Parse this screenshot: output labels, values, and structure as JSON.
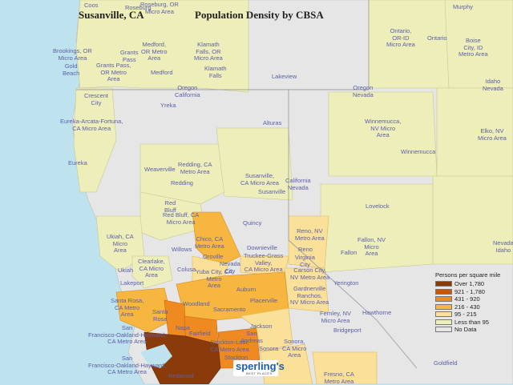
{
  "header": {
    "location": "Susanville, CA",
    "title": "Population Density by CBSA"
  },
  "legend": {
    "title": "Persons per square mile",
    "items": [
      {
        "label": "Over 1,780",
        "color": "#8b3a0a"
      },
      {
        "label": "921 - 1,780",
        "color": "#c6580e"
      },
      {
        "label": "431 - 920",
        "color": "#ee8a1f"
      },
      {
        "label": "216 - 430",
        "color": "#f7b640"
      },
      {
        "label": "95 - 215",
        "color": "#fbe09a"
      },
      {
        "label": "Less than 95",
        "color": "#eeeebb"
      },
      {
        "label": "No Data",
        "color": "#e6e6e6"
      }
    ]
  },
  "map_labels": {
    "coos": "Coos",
    "roseburg_top": "Roseburg",
    "roseburg": "Roseburg, OR\nMicro Area",
    "murphy": "Murphy",
    "brookings": "Brookings, OR\nMicro Area",
    "grants_pass_city": "Grants\nPass",
    "grants_pass": "Grants Pass,\nOR Metro\nArea",
    "medford": "Medford,\nOR Metro\nArea",
    "medford_city": "Medford",
    "klamath": "Klamath\nFalls, OR\nMicro Area",
    "klamath_city": "Klamath\nFalls",
    "gold_beach": "Gold\nBeach",
    "lakeview": "Lakeview",
    "ontario": "Ontario,\nOR-ID\nMicro Area",
    "ontario_vert": "Ontario",
    "boise": "Boise\nCity, ID\nMetro Area",
    "idaho_nevada": "Idaho\nNevada",
    "crescent_city": "Crescent\nCity",
    "oregon_california": "Oregon\nCalifornia",
    "yreka": "Yreka",
    "oregon_nevada": "Oregon\nNevada",
    "eureka_area": "Eureka-Arcata-Fortuna,\nCA Micro Area",
    "alturas": "Alturas",
    "winnemucca_area": "Winnemucca,\nNV Micro\nArea",
    "winnemucca": "Winnemucca",
    "elko": "Elko, NV\nMicro Area",
    "eureka": "Eureka",
    "weaverville": "Weaverville",
    "redding_area": "Redding, CA\nMetro Area",
    "redding": "Redding",
    "susanville_area": "Susanville,\nCA Micro Area",
    "susanville": "Susanville",
    "california_nevada": "California\nNevada",
    "red_bluff_city": "Red\nBluff",
    "red_bluff": "Red Bluff, CA\nMicro Area",
    "lovelock": "Lovelock",
    "ukiah": "Ukiah, CA\nMicro\nArea",
    "quincy": "Quincy",
    "chico": "Chico, CA\nMetro Area",
    "oroville": "Oroville",
    "downieville": "Downieville",
    "reno": "Reno, NV\nMetro Area",
    "fallon": "Fallon, NV\nMicro\nArea",
    "fallon_city": "Fallon",
    "willows": "Willows",
    "truckee": "Truckee-Grass\nValley,\nCA Micro Area",
    "reno_city": "Reno",
    "virginia_city": "Virginia\nCity",
    "carson_area": "Carson City,\nNV Metro Area",
    "clearlake": "Clearlake,\nCA Micro\nArea",
    "ukiah_city": "Ukiah",
    "colusa": "Colusa",
    "yuba": "Yuba City, CA\nMetro\nArea",
    "nevada_city": "Nevada\nCity",
    "auburn": "Auburn",
    "gardnerville": "Gardnerville\nRanchos,\nNV Micro Area",
    "yerington": "Yerington",
    "lakeport": "Lakeport",
    "santa_rosa": "Santa Rosa,\nCA Metro\nArea",
    "woodland": "Woodland",
    "placerville": "Placerville",
    "sacramento": "Sacramento",
    "santa_rosa_city": "Santa\nRosa",
    "hawthorne": "Hawthorne",
    "fernley": "Fernley, NV\nMicro Area",
    "bridgeport": "Bridgeport",
    "sf_top": "San\nFrancisco-Oakland-Hayward,\nCA Metro Area",
    "napa": "Napa",
    "fairfield": "Fairfield",
    "jackson": "Jackson",
    "san_andreas": "San\nAndreas",
    "stockton": "Stockton-Lodi,\nCA Metro Area",
    "stockton_city": "Stockton",
    "sonora_area": "Sonora,\nCA Micro\nArea",
    "sonora": "Sonora",
    "sf_bottom": "San\nFrancisco-Oakland-Hayward,\nCA Metro Area",
    "redwood_city": "Redwood",
    "fresno": "Fresno, CA\nMetro Area",
    "goldfield": "Goldfield",
    "nevada_idaho_right": "Nevada\nIdaho",
    "brand": "sperling's",
    "brand_sub": "BEST PLACES"
  }
}
